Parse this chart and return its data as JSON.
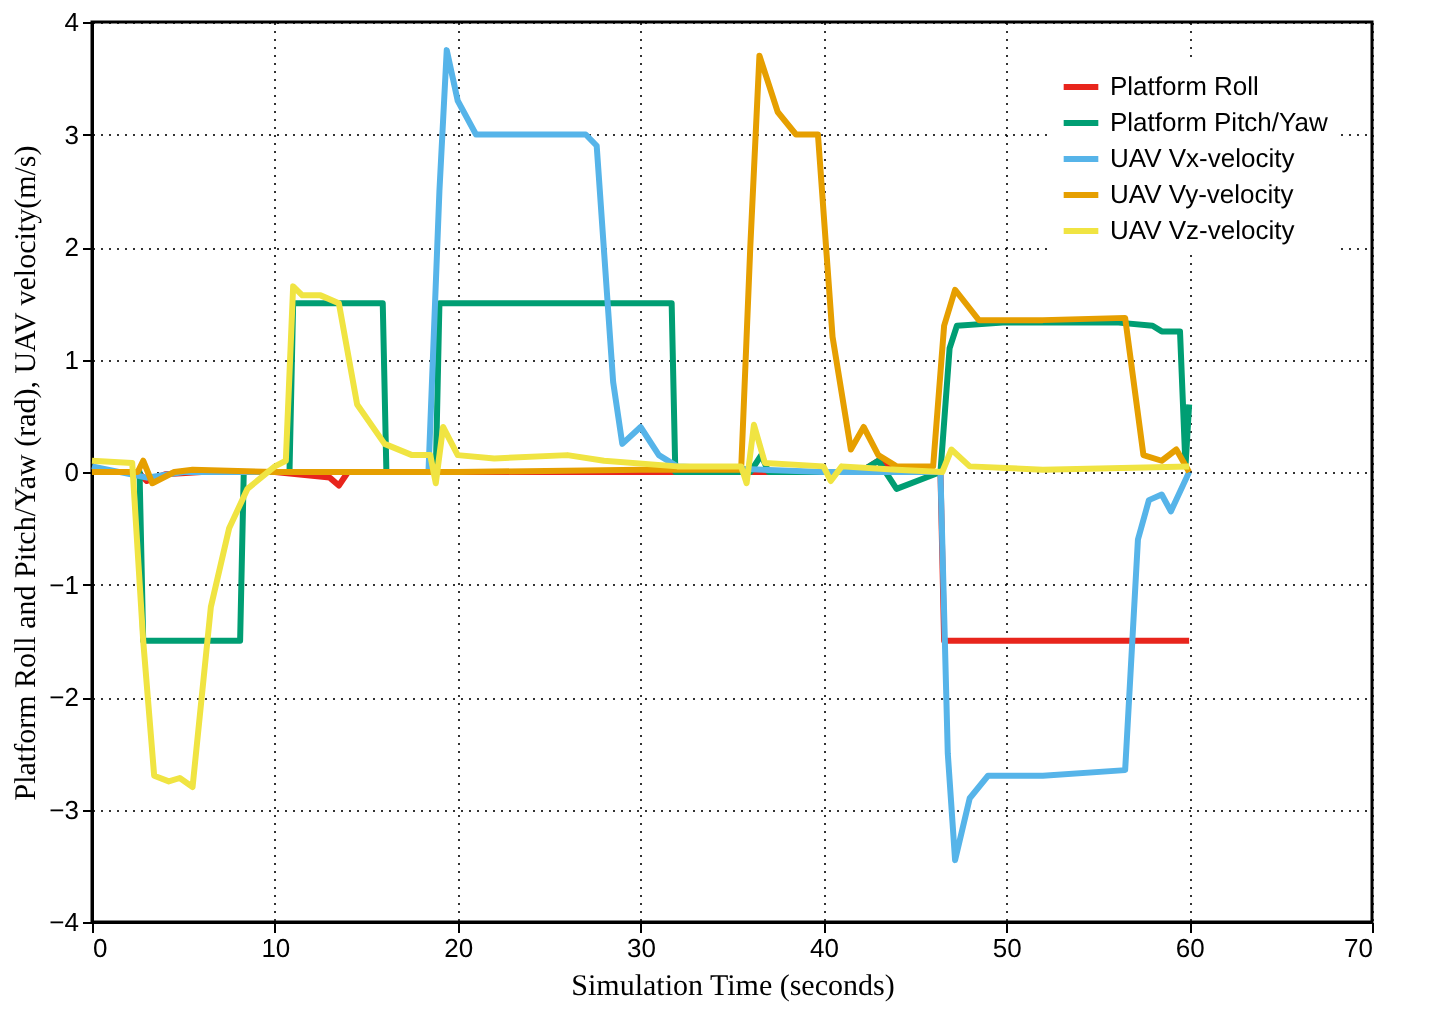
{
  "chart_data": {
    "type": "line",
    "xlabel": "Simulation Time (seconds)",
    "ylabel": "Platform Roll and Pitch/Yaw (rad), UAV velocity(m/s)",
    "xlim": [
      0,
      70
    ],
    "xticks": [
      0,
      10,
      20,
      30,
      40,
      50,
      60,
      70
    ],
    "ylim": [
      -4,
      4
    ],
    "yticks": [
      -4,
      -3,
      -2,
      -1,
      0,
      1,
      2,
      3,
      4
    ],
    "grid": true,
    "legend": "top right",
    "marker": "none",
    "line_style": "solid",
    "series": [
      {
        "name": "Platform Roll",
        "color": "#e8251c",
        "x": [
          0,
          2.5,
          3,
          4,
          6,
          10,
          13,
          13.5,
          14,
          20,
          30,
          36,
          40,
          42,
          43,
          44,
          46.4,
          46.6,
          50,
          60
        ],
        "values": [
          0,
          0,
          -0.08,
          -0.02,
          0,
          0,
          -0.05,
          -0.12,
          0,
          0,
          0,
          0,
          0,
          0,
          0.1,
          0,
          0,
          -1.5,
          -1.5,
          -1.5
        ]
      },
      {
        "name": "Platform Pitch/Yaw",
        "color": "#009e73",
        "x": [
          0,
          2.6,
          2.8,
          8.1,
          8.3,
          10.8,
          11,
          15.9,
          16.1,
          18.8,
          19,
          31.7,
          31.9,
          36,
          36.6,
          37,
          40,
          42,
          43,
          44,
          46.4,
          46.9,
          47.3,
          50,
          56,
          58,
          58.5,
          59.5,
          59.8,
          60
        ],
        "values": [
          0,
          0,
          -1.5,
          -1.5,
          0,
          0,
          1.5,
          1.5,
          0,
          0,
          1.5,
          1.5,
          0,
          0,
          0.15,
          0,
          0,
          0,
          0.1,
          -0.15,
          0,
          1.1,
          1.3,
          1.33,
          1.33,
          1.3,
          1.25,
          1.25,
          0.05,
          0.6
        ]
      },
      {
        "name": "UAV Vx-velocity",
        "color": "#56b4e9",
        "x": [
          0,
          3,
          5,
          10,
          18.4,
          19,
          19.4,
          20,
          21,
          27,
          27.6,
          28.5,
          29,
          30,
          31,
          32,
          40,
          46.4,
          46.8,
          47.2,
          48,
          49,
          52,
          56.5,
          57.2,
          57.8,
          58.5,
          59,
          60
        ],
        "values": [
          0.05,
          -0.05,
          0,
          0,
          0,
          2.5,
          3.75,
          3.3,
          3.0,
          3.0,
          2.9,
          0.8,
          0.25,
          0.4,
          0.15,
          0.05,
          0,
          0,
          -2.5,
          -3.45,
          -2.9,
          -2.7,
          -2.7,
          -2.65,
          -0.6,
          -0.25,
          -0.2,
          -0.35,
          0
        ]
      },
      {
        "name": "UAV Vy-velocity",
        "color": "#e69f00",
        "x": [
          0,
          2.5,
          2.8,
          3.3,
          4.5,
          5.5,
          10,
          20,
          30,
          35.5,
          36,
          36.5,
          37.5,
          38.5,
          39.7,
          40.5,
          41.5,
          42.2,
          43,
          44,
          46,
          46.6,
          47.2,
          48.5,
          52,
          56.5,
          57.5,
          58.5,
          59.3,
          60
        ],
        "values": [
          0,
          0,
          0.1,
          -0.1,
          0,
          0.02,
          0,
          0,
          0.02,
          0.02,
          2,
          3.7,
          3.2,
          3.0,
          3.0,
          1.2,
          0.2,
          0.4,
          0.15,
          0.05,
          0.05,
          1.3,
          1.62,
          1.35,
          1.35,
          1.37,
          0.15,
          0.1,
          0.2,
          0
        ]
      },
      {
        "name": "UAV Vz-velocity",
        "color": "#f0e442",
        "x": [
          0,
          2.2,
          2.8,
          3.4,
          4.2,
          4.8,
          5.5,
          6.5,
          7.5,
          8.5,
          10,
          10.6,
          11,
          11.5,
          12.5,
          13.5,
          14.5,
          16,
          17.5,
          18.5,
          18.8,
          19.2,
          20,
          22,
          26,
          28,
          32,
          35.5,
          35.8,
          36.2,
          36.8,
          40,
          40.4,
          41,
          44,
          46.5,
          47,
          48,
          52,
          60
        ],
        "values": [
          0.1,
          0.08,
          -1.5,
          -2.7,
          -2.75,
          -2.72,
          -2.8,
          -1.2,
          -0.5,
          -0.15,
          0.05,
          0.1,
          1.65,
          1.57,
          1.57,
          1.5,
          0.6,
          0.25,
          0.15,
          0.15,
          -0.1,
          0.4,
          0.15,
          0.12,
          0.15,
          0.1,
          0.05,
          0.05,
          -0.1,
          0.42,
          0.08,
          0.05,
          -0.08,
          0.05,
          0.02,
          0,
          0.2,
          0.05,
          0.02,
          0.05
        ]
      }
    ]
  }
}
